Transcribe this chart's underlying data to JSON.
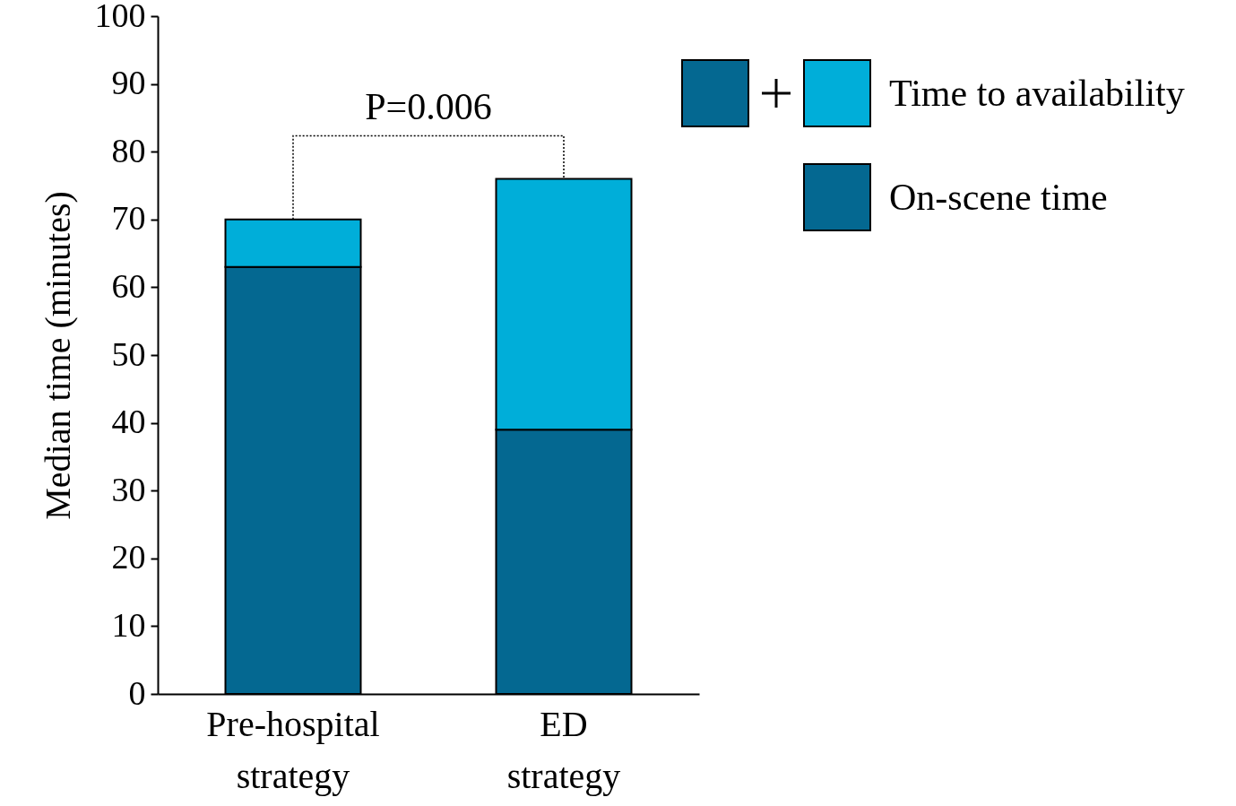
{
  "chart_data": {
    "type": "bar",
    "ylabel": "Median time (minutes)",
    "categories": [
      "Pre-hospital strategy",
      "ED strategy"
    ],
    "stacked": true,
    "ylim": [
      0,
      100
    ],
    "yticks": [
      0,
      10,
      20,
      30,
      40,
      50,
      60,
      70,
      80,
      90,
      100
    ],
    "legend": "top right",
    "annotations": [
      "P=0.006"
    ],
    "series": [
      {
        "name": "On-scene time",
        "color": "#046891",
        "values": [
          63,
          39
        ]
      },
      {
        "name": "Time to availability",
        "color": "#00aed9",
        "values": [
          7,
          37
        ]
      }
    ]
  }
}
